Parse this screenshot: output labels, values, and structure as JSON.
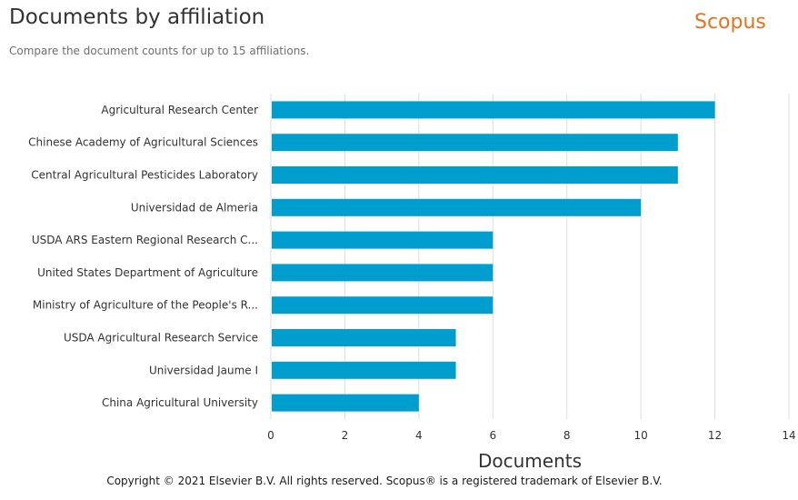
{
  "header": {
    "title": "Documents by affiliation",
    "subtitle": "Compare the document counts for up to 15 affiliations.",
    "brand": "Scopus"
  },
  "footer": {
    "copyright": "Copyright © 2021 Elsevier B.V. All rights reserved. Scopus® is a registered trademark of Elsevier B.V."
  },
  "chart_data": {
    "type": "bar",
    "orientation": "horizontal",
    "categories": [
      "Agricultural Research Center",
      "Chinese Academy of Agricultural Sciences",
      "Central Agricultural Pesticides Laboratory",
      "Universidad de Almeria",
      "USDA ARS Eastern Regional Research C...",
      "United States Department of Agriculture",
      "Ministry of Agriculture of the People's R...",
      "USDA Agricultural Research Service",
      "Universidad Jaume I",
      "China Agricultural University"
    ],
    "values": [
      12,
      11,
      11,
      10,
      6,
      6,
      6,
      5,
      5,
      4
    ],
    "xlabel": "Documents",
    "xlim": [
      0,
      14
    ],
    "xticks": [
      0,
      2,
      4,
      6,
      8,
      10,
      12,
      14
    ],
    "grid": true,
    "bar_color": "#009ecf"
  }
}
